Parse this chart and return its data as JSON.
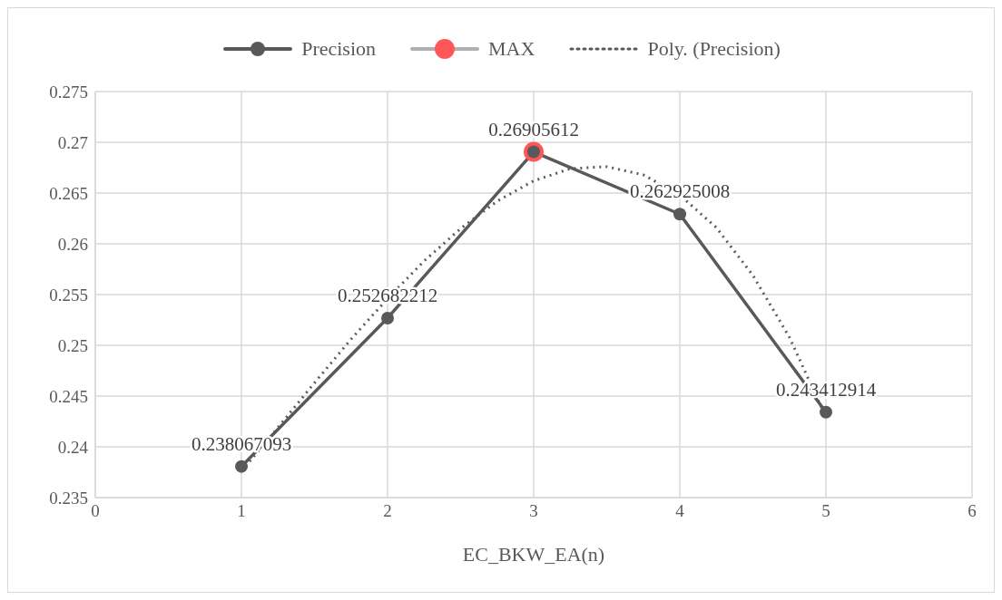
{
  "chart_data": {
    "type": "line",
    "xlabel": "EC_BKW_EA(n)",
    "xlim": [
      0,
      6
    ],
    "xticks": [
      0,
      1,
      2,
      3,
      4,
      5,
      6
    ],
    "ylim": [
      0.235,
      0.275
    ],
    "yticks": [
      0.235,
      0.24,
      0.245,
      0.25,
      0.255,
      0.26,
      0.265,
      0.27,
      0.275
    ],
    "grid": true,
    "legend": "top",
    "marker": "circle",
    "line_style": "solid",
    "series": [
      {
        "name": "Precision",
        "color": "#595959",
        "x": [
          1,
          2,
          3,
          4,
          5
        ],
        "values": [
          0.238067093,
          0.252682212,
          0.26905612,
          0.262925008,
          0.243412914
        ],
        "value_labels": [
          "0.238067093",
          "0.252682212",
          null,
          "0.262925008",
          "0.243412914"
        ]
      },
      {
        "name": "MAX",
        "color": "#ff5757",
        "x": [
          3
        ],
        "values": [
          0.26905612
        ],
        "value_labels": [
          "0.26905612"
        ]
      },
      {
        "name": "Poly. (Precision)",
        "color": "#595959",
        "marker": "none",
        "line_style": "dotted",
        "x": [
          1,
          1.25,
          1.5,
          1.75,
          2,
          2.25,
          2.5,
          2.75,
          3,
          3.25,
          3.5,
          3.75,
          4,
          4.25,
          4.5,
          4.75,
          5
        ],
        "values": [
          0.2376,
          0.2419,
          0.2463,
          0.2506,
          0.2546,
          0.2583,
          0.2615,
          0.2642,
          0.2662,
          0.2674,
          0.2676,
          0.2668,
          0.2648,
          0.2616,
          0.2569,
          0.2508,
          0.2429
        ]
      }
    ]
  }
}
